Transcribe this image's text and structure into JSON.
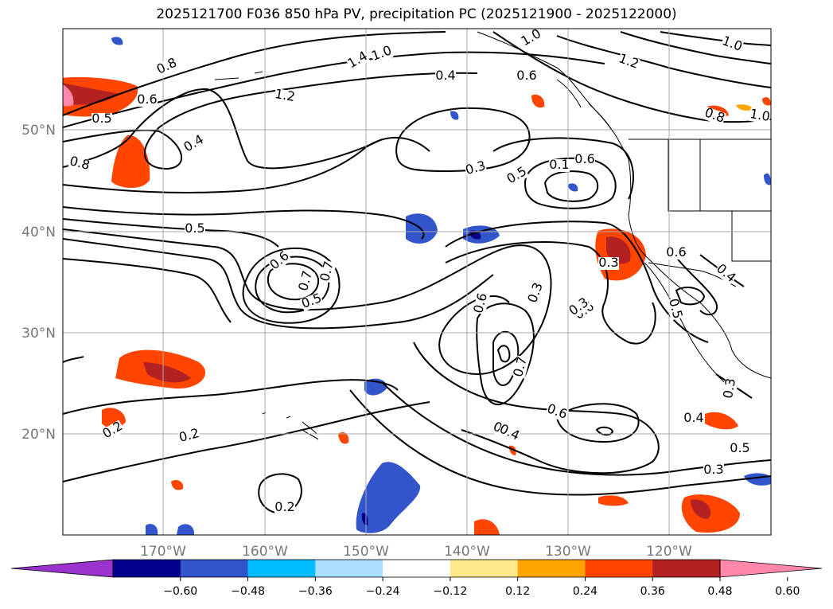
{
  "title": "2025121700 F036 850 hPa PV, precipitation PC (2025121900 - 2025122000)",
  "lon_labels": [
    "170°W",
    "160°W",
    "150°W",
    "140°W",
    "130°W",
    "120°W"
  ],
  "lat_labels": [
    "50°N",
    "40°N",
    "30°N",
    "20°N"
  ],
  "colorbar": {
    "colors": [
      "#9933cc",
      "#00008b",
      "#3355cc",
      "#00bbff",
      "#aaddff",
      "#ffffff",
      "#ffe98a",
      "#ffa500",
      "#ff4500",
      "#b22222",
      "#ff88aa"
    ],
    "tick_labels": [
      "−0.60",
      "−0.48",
      "−0.36",
      "−0.24",
      "−0.12",
      "0.12",
      "0.24",
      "0.36",
      "0.48",
      "0.60"
    ]
  },
  "contour_labels": [
    "0.8",
    "0.6",
    "0.5",
    "0.4",
    "0.7",
    "0.8",
    "1.4",
    "1.0",
    "1.2",
    "0.4",
    "0.6",
    "1.0",
    "0.8",
    "1.2",
    "1.0",
    "0.8",
    "1.0",
    "0.3",
    "0.5",
    "0.1",
    "0.6",
    "0.5",
    "0.6",
    "0.7",
    "0.5",
    "0.6",
    "0.3",
    "0.6",
    "0.5",
    "0.5",
    "0.6",
    "0.7",
    "0.3",
    "0.5",
    "0.4",
    "0.3",
    "0.6",
    "0.4",
    "0.2",
    "0.2",
    "0.2",
    "0.4",
    "0.5",
    "0.3",
    "0.3"
  ],
  "colors": {
    "land_line": "#000000",
    "grid": "#aaaaaa",
    "contour": "#000000"
  }
}
